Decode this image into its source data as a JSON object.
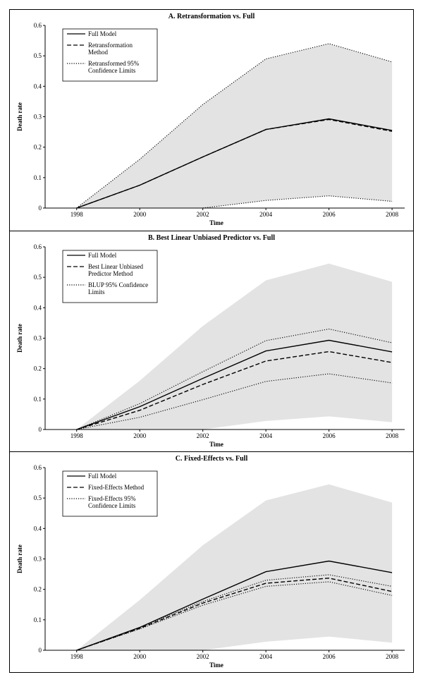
{
  "chart_data": [
    {
      "type": "line",
      "title": "A.  Retransformation  vs. Full",
      "xlabel": "Time",
      "ylabel": "Death rate",
      "x": [
        1998,
        2000,
        2002,
        2004,
        2006,
        2008
      ],
      "xlim": [
        1997.0,
        2008.4
      ],
      "ylim": [
        0,
        0.6
      ],
      "yticks": [
        "0",
        "0.1",
        "0.2",
        "0.3",
        "0.4",
        "0.5",
        "0.6"
      ],
      "band": {
        "upper": [
          0,
          0.16,
          0.34,
          0.49,
          0.54,
          0.48
        ],
        "lower": [
          0,
          0,
          0,
          0.025,
          0.04,
          0.022
        ]
      },
      "legend_position": "top-left",
      "series": [
        {
          "name": "Full Model",
          "style": "solid",
          "values": [
            0,
            0.075,
            0.168,
            0.258,
            0.293,
            0.255
          ]
        },
        {
          "name": "Retransformation Method",
          "style": "dashed",
          "values": [
            0,
            0.075,
            0.168,
            0.258,
            0.291,
            0.252
          ]
        },
        {
          "name": "Retransformed 95% Confidence Limits",
          "style": "dotted",
          "values": [
            0,
            0.16,
            0.34,
            0.49,
            0.54,
            0.48
          ]
        },
        {
          "name": "",
          "style": "dotted",
          "values": [
            0,
            0,
            0,
            0.025,
            0.04,
            0.022
          ]
        }
      ],
      "legend": [
        {
          "lines": [
            "Full Model"
          ],
          "style": "solid"
        },
        {
          "lines": [
            "Retransformation",
            "Method"
          ],
          "style": "dashed"
        },
        {
          "lines": [
            "Retransformed 95%",
            "Confidence Limits"
          ],
          "style": "dotted"
        }
      ]
    },
    {
      "type": "line",
      "title": "B.  Best Linear Unbiased Predictor  vs. Full",
      "xlabel": "Time",
      "ylabel": "Death rate",
      "x": [
        1998,
        2000,
        2002,
        2004,
        2006,
        2008
      ],
      "xlim": [
        1997.0,
        2008.4
      ],
      "ylim": [
        0,
        0.6
      ],
      "yticks": [
        "0",
        "0.1",
        "0.2",
        "0.3",
        "0.4",
        "0.5",
        "0.6"
      ],
      "band": {
        "upper": [
          0,
          0.16,
          0.34,
          0.49,
          0.545,
          0.485
        ],
        "lower": [
          0,
          0,
          0,
          0.028,
          0.043,
          0.024
        ]
      },
      "legend_position": "top-left",
      "series": [
        {
          "name": "Full Model",
          "style": "solid",
          "values": [
            0,
            0.075,
            0.168,
            0.258,
            0.293,
            0.255
          ]
        },
        {
          "name": "Best Linear Unbiased Predictor Method",
          "style": "dashed",
          "values": [
            0,
            0.063,
            0.148,
            0.225,
            0.256,
            0.22
          ]
        },
        {
          "name": "BLUP 95% Confidence Limits",
          "style": "dotted",
          "values": [
            0,
            0.085,
            0.19,
            0.292,
            0.33,
            0.285
          ]
        },
        {
          "name": "",
          "style": "dotted",
          "values": [
            0,
            0.04,
            0.098,
            0.158,
            0.183,
            0.153
          ]
        }
      ],
      "legend": [
        {
          "lines": [
            "Full Model"
          ],
          "style": "solid"
        },
        {
          "lines": [
            "Best Linear Unbiased",
            "Predictor Method"
          ],
          "style": "dashed"
        },
        {
          "lines": [
            "BLUP 95% Confidence",
            "Limits"
          ],
          "style": "dotted"
        }
      ]
    },
    {
      "type": "line",
      "title": "C.  Fixed-Effects vs. Full",
      "xlabel": "Time",
      "ylabel": "Death rate",
      "x": [
        1998,
        2000,
        2002,
        2004,
        2006,
        2008
      ],
      "xlim": [
        1997.0,
        2008.4
      ],
      "ylim": [
        0,
        0.6
      ],
      "yticks": [
        "0",
        "0.1",
        "0.2",
        "0.3",
        "0.4",
        "0.5",
        "0.6"
      ],
      "band": {
        "upper": [
          0,
          0.165,
          0.345,
          0.492,
          0.545,
          0.485
        ],
        "lower": [
          0,
          0,
          0,
          0.028,
          0.045,
          0.025
        ]
      },
      "legend_position": "top-left",
      "series": [
        {
          "name": "Full Model",
          "style": "solid",
          "values": [
            0,
            0.075,
            0.168,
            0.258,
            0.293,
            0.255
          ]
        },
        {
          "name": "Fixed-Effects Method",
          "style": "dashed",
          "values": [
            0,
            0.072,
            0.155,
            0.22,
            0.237,
            0.193
          ]
        },
        {
          "name": "Fixed-Effects 95% Confidence Limits",
          "style": "dotted",
          "values": [
            0,
            0.075,
            0.16,
            0.23,
            0.248,
            0.21
          ]
        },
        {
          "name": "",
          "style": "dotted",
          "values": [
            0,
            0.07,
            0.148,
            0.21,
            0.225,
            0.18
          ]
        }
      ],
      "legend": [
        {
          "lines": [
            "Full Model"
          ],
          "style": "solid"
        },
        {
          "lines": [
            "Fixed-Effects Method"
          ],
          "style": "dashed"
        },
        {
          "lines": [
            "Fixed-Effects 95%",
            "Confidence Limits"
          ],
          "style": "dotted"
        }
      ]
    }
  ],
  "colors": {
    "band": "#e3e3e3",
    "line": "#000000"
  }
}
